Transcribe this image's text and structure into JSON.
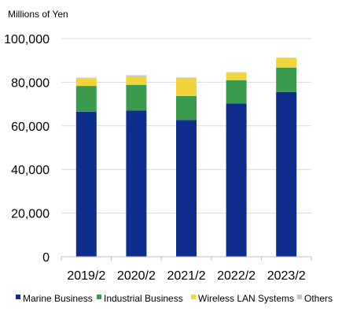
{
  "chart_data": {
    "type": "bar",
    "stacked": true,
    "ylabel": "Millions of Yen",
    "ylim": [
      0,
      100000
    ],
    "yticks": [
      0,
      20000,
      40000,
      60000,
      80000,
      100000
    ],
    "ytick_labels": [
      "0",
      "20,000",
      "40,000",
      "60,000",
      "80,000",
      "100,000"
    ],
    "grid": true,
    "legend_position": "bottom",
    "categories": [
      "2019/2",
      "2020/2",
      "2021/2",
      "2022/2",
      "2023/2"
    ],
    "series": [
      {
        "name": "Marine Business",
        "color": "#0e2d8c",
        "values": [
          66500,
          67000,
          62700,
          70200,
          75500
        ]
      },
      {
        "name": "Industrial Business",
        "color": "#3a9a4d",
        "values": [
          11800,
          11800,
          11000,
          10700,
          11200
        ]
      },
      {
        "name": "Wireless LAN Systems",
        "color": "#f0d43a",
        "values": [
          3600,
          3900,
          8300,
          3500,
          4500
        ]
      },
      {
        "name": "Others",
        "color": "#c4c4cc",
        "values": [
          200,
          500,
          200,
          200,
          100
        ]
      }
    ]
  }
}
